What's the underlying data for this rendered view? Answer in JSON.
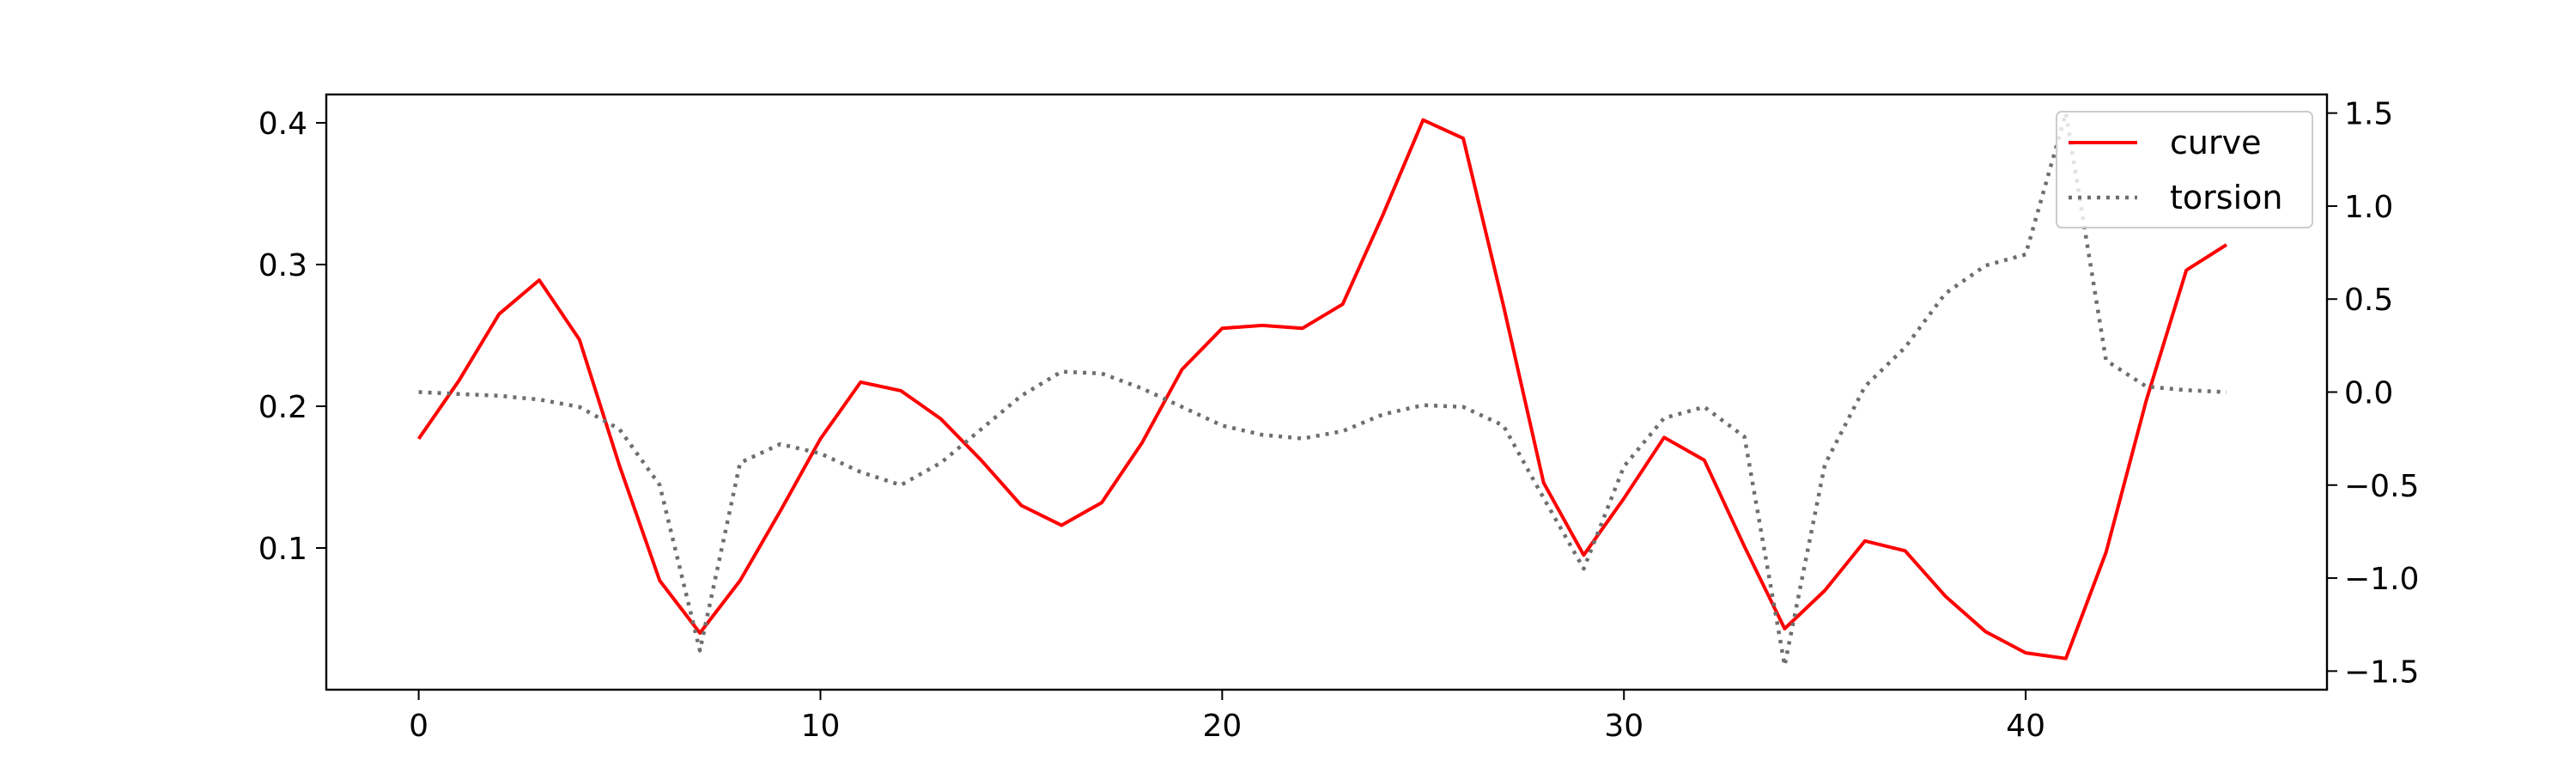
{
  "chart_data": {
    "type": "line",
    "title": "",
    "xlabel": "",
    "ylabel": "",
    "y2label": "",
    "xlim": [
      -2.3,
      47.5
    ],
    "ylim": [
      0.0,
      0.42
    ],
    "y2lim": [
      -1.6,
      1.6
    ],
    "xticks": [
      0,
      10,
      20,
      30,
      40
    ],
    "yticks": [
      0.1,
      0.2,
      0.3,
      0.4
    ],
    "y2ticks": [
      -1.5,
      -1.0,
      -0.5,
      0.0,
      0.5,
      1.0,
      1.5
    ],
    "grid": false,
    "legend": {
      "placement": "top-right",
      "entries": [
        "curve",
        "torsion"
      ]
    },
    "series": [
      {
        "name": "curve",
        "axis": "left",
        "color": "#ff0000",
        "style": "solid",
        "x": [
          0,
          1,
          2,
          3,
          4,
          5,
          6,
          7,
          8,
          9,
          10,
          11,
          12,
          13,
          14,
          15,
          16,
          17,
          18,
          19,
          20,
          21,
          22,
          23,
          24,
          25,
          26,
          27,
          28,
          29,
          30,
          31,
          32,
          33,
          34,
          35,
          36,
          37,
          38,
          39,
          40,
          41,
          42,
          43,
          44,
          45
        ],
        "values": [
          0.177,
          0.218,
          0.265,
          0.289,
          0.247,
          0.158,
          0.077,
          0.04,
          0.077,
          0.126,
          0.177,
          0.217,
          0.211,
          0.191,
          0.162,
          0.13,
          0.116,
          0.132,
          0.174,
          0.226,
          0.255,
          0.257,
          0.255,
          0.272,
          0.335,
          0.402,
          0.389,
          0.271,
          0.146,
          0.095,
          0.135,
          0.178,
          0.162,
          0.101,
          0.043,
          0.07,
          0.105,
          0.098,
          0.066,
          0.041,
          0.026,
          0.022,
          0.097,
          0.204,
          0.296,
          0.314
        ]
      },
      {
        "name": "torsion",
        "axis": "right",
        "color": "#6e6e6e",
        "style": "dotted",
        "x": [
          0,
          1,
          2,
          3,
          4,
          5,
          6,
          7,
          8,
          9,
          10,
          11,
          12,
          13,
          14,
          15,
          16,
          17,
          18,
          19,
          20,
          21,
          22,
          23,
          24,
          25,
          26,
          27,
          28,
          29,
          30,
          31,
          32,
          33,
          34,
          35,
          36,
          37,
          38,
          39,
          40,
          41,
          42,
          43,
          44,
          45
        ],
        "values": [
          0.0,
          -0.01,
          -0.02,
          -0.04,
          -0.08,
          -0.2,
          -0.5,
          -1.39,
          -0.38,
          -0.28,
          -0.33,
          -0.43,
          -0.5,
          -0.38,
          -0.2,
          -0.02,
          0.11,
          0.1,
          0.02,
          -0.08,
          -0.18,
          -0.23,
          -0.25,
          -0.21,
          -0.12,
          -0.07,
          -0.08,
          -0.18,
          -0.57,
          -0.95,
          -0.4,
          -0.14,
          -0.08,
          -0.24,
          -1.47,
          -0.39,
          0.03,
          0.24,
          0.53,
          0.68,
          0.74,
          1.5,
          0.17,
          0.03,
          0.01,
          0.0
        ]
      }
    ]
  }
}
